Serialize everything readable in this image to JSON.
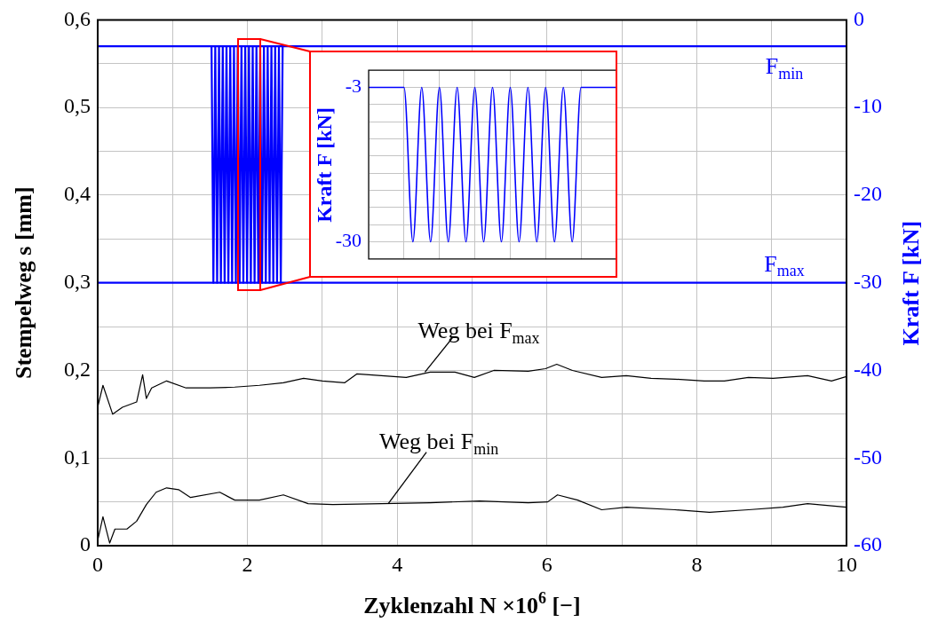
{
  "chart_data": [
    {
      "type": "line",
      "xlabel": "Zyklenzahl N ×10$^{6}$ [−]",
      "ylabel": "Stempelweg s [mm]",
      "y2label": "Kraft F [kN]",
      "xlim": [
        0,
        10
      ],
      "xticks": [
        0,
        {
          "value": 1,
          "label": null
        },
        2,
        {
          "value": 3,
          "label": null
        },
        4,
        {
          "value": 5,
          "label": null
        },
        6,
        {
          "value": 7,
          "label": null
        },
        8,
        {
          "value": 9,
          "label": null
        },
        10
      ],
      "ylim": [
        0,
        0.6
      ],
      "yticks": [
        0,
        {
          "value": 0.05,
          "label": null
        },
        {
          "value": 0.1,
          "label": "0,1"
        },
        {
          "value": 0.15,
          "label": null
        },
        {
          "value": 0.2,
          "label": "0,2"
        },
        {
          "value": 0.25,
          "label": null
        },
        {
          "value": 0.3,
          "label": "0,3"
        },
        {
          "value": 0.35,
          "label": null
        },
        {
          "value": 0.4,
          "label": "0,4"
        },
        {
          "value": 0.45,
          "label": null
        },
        {
          "value": 0.5,
          "label": "0,5"
        },
        {
          "value": 0.55,
          "label": null
        },
        {
          "value": 0.6,
          "label": "0,6"
        }
      ],
      "y2lim": [
        -60,
        0
      ],
      "y2ticks": [
        -60,
        -50,
        -40,
        -30,
        -20,
        -10,
        0
      ],
      "grid": true,
      "series": [
        {
          "name": "Weg bei F$_{max}$",
          "color": "#000000",
          "x": [
            0,
            0.07,
            0.2,
            0.33,
            0.52,
            0.6,
            0.65,
            0.72,
            0.92,
            1.18,
            1.5,
            1.83,
            2.16,
            2.48,
            2.75,
            3.0,
            3.3,
            3.46,
            3.79,
            4.12,
            4.44,
            4.77,
            5.03,
            5.29,
            5.75,
            5.98,
            6.13,
            6.34,
            6.73,
            7.06,
            7.39,
            7.71,
            8.1,
            8.37,
            8.69,
            9.02,
            9.48,
            9.8,
            10
          ],
          "values": [
            0.158,
            0.183,
            0.15,
            0.158,
            0.164,
            0.195,
            0.168,
            0.18,
            0.188,
            0.18,
            0.18,
            0.181,
            0.183,
            0.186,
            0.191,
            0.188,
            0.186,
            0.196,
            0.194,
            0.192,
            0.198,
            0.198,
            0.192,
            0.2,
            0.199,
            0.202,
            0.207,
            0.2,
            0.192,
            0.194,
            0.191,
            0.19,
            0.188,
            0.188,
            0.192,
            0.191,
            0.194,
            0.188,
            0.193
          ]
        },
        {
          "name": "Weg bei F$_{min}$",
          "color": "#000000",
          "x": [
            0,
            0.07,
            0.16,
            0.23,
            0.39,
            0.52,
            0.65,
            0.78,
            0.92,
            1.08,
            1.24,
            1.63,
            1.83,
            2.16,
            2.48,
            2.81,
            3.14,
            3.79,
            4.44,
            5.1,
            5.75,
            6.01,
            6.14,
            6.41,
            6.73,
            7.06,
            7.71,
            8.17,
            8.69,
            9.15,
            9.48,
            10
          ],
          "values": [
            0.006,
            0.033,
            0.003,
            0.019,
            0.019,
            0.028,
            0.047,
            0.061,
            0.066,
            0.064,
            0.055,
            0.061,
            0.052,
            0.052,
            0.058,
            0.048,
            0.047,
            0.048,
            0.049,
            0.051,
            0.049,
            0.05,
            0.058,
            0.052,
            0.041,
            0.044,
            0.041,
            0.038,
            0.041,
            0.044,
            0.048,
            0.044
          ]
        },
        {
          "name": "F$_{min}$",
          "color": "#0000ff",
          "axis": "y2",
          "x": [
            0,
            10
          ],
          "values": [
            -3,
            -3
          ]
        },
        {
          "name": "F$_{max}$",
          "color": "#0000ff",
          "axis": "y2",
          "x": [
            0,
            10
          ],
          "values": [
            -30,
            -30
          ]
        },
        {
          "color": "#0000ff",
          "axis": "y2",
          "x": [
            1.52,
            1.545,
            1.57,
            1.595,
            1.62,
            1.645,
            1.67,
            1.695,
            1.72,
            1.745,
            1.77,
            1.795,
            1.82,
            1.845,
            1.87,
            1.895,
            1.92,
            1.945,
            1.97,
            1.995,
            2.02,
            2.045,
            2.07,
            2.095,
            2.12,
            2.145,
            2.17,
            2.195,
            2.22,
            2.245,
            2.27,
            2.295,
            2.32,
            2.345,
            2.37,
            2.395,
            2.42,
            2.445,
            2.47
          ],
          "values": [
            -3,
            -30,
            -3,
            -30,
            -3,
            -30,
            -3,
            -30,
            -3,
            -30,
            -3,
            -30,
            -3,
            -30,
            -3,
            -30,
            -3,
            -30,
            -3,
            -30,
            -3,
            -30,
            -3,
            -30,
            -3,
            -30,
            -3,
            -30,
            -3,
            -30,
            -3,
            -30,
            -3,
            -30,
            -3,
            -30,
            -3,
            -30,
            -3
          ]
        }
      ]
    },
    {
      "type": "line",
      "ylabel": "Kraft F [kN]",
      "categories": [
        null,
        null,
        null,
        null,
        null,
        null,
        null,
        null,
        null,
        null,
        null,
        null,
        null,
        null,
        null,
        null,
        null,
        null,
        null,
        null,
        null,
        null,
        null,
        null,
        null,
        null,
        null,
        null,
        null
      ],
      "series": [
        {
          "color": "#0000ff",
          "values": [
            -3,
            -3,
            -3,
            -3,
            -3,
            -30,
            -3,
            -30,
            -3,
            -30,
            -3,
            -30,
            -3,
            -30,
            -3,
            -30,
            -3,
            -30,
            -3,
            -30,
            -3,
            -30,
            -3,
            -30,
            -3,
            -3,
            -3,
            -3,
            -3
          ]
        }
      ],
      "ylim": [
        -33,
        0
      ],
      "yticks": [
        -3,
        {
          "value": -6,
          "label": null
        },
        {
          "value": -9,
          "label": null
        },
        {
          "value": -12,
          "label": null
        },
        {
          "value": -15,
          "label": null
        },
        {
          "value": -18,
          "label": null
        },
        {
          "value": -21,
          "label": null
        },
        {
          "value": -24,
          "label": null
        },
        {
          "value": -27,
          "label": null
        },
        -30
      ],
      "grid": true,
      "tick_labels": "y"
    }
  ]
}
